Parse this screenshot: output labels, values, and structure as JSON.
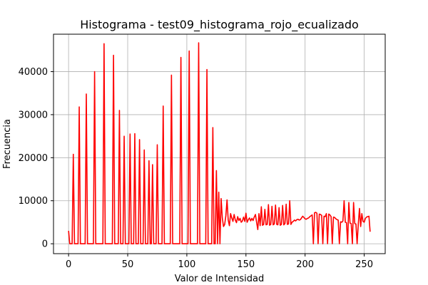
{
  "chart_data": {
    "type": "line",
    "title": "Histograma - test09_histograma_rojo_ecualizado",
    "xlabel": "Valor de Intensidad",
    "ylabel": "Frecuencia",
    "xlim": [
      -12.75,
      267.75
    ],
    "ylim": [
      -2300,
      48700
    ],
    "xticks": [
      0,
      50,
      100,
      150,
      200,
      250
    ],
    "yticks": [
      0,
      10000,
      20000,
      30000,
      40000
    ],
    "xtick_labels": [
      "0",
      "50",
      "100",
      "150",
      "200",
      "250"
    ],
    "ytick_labels": [
      "0",
      "10000",
      "20000",
      "30000",
      "40000"
    ],
    "grid": true,
    "series": [
      {
        "color": "#ff0000",
        "points": [
          [
            0,
            3000
          ],
          [
            1,
            0
          ],
          [
            3,
            0
          ],
          [
            4,
            20800
          ],
          [
            5,
            0
          ],
          [
            8,
            0
          ],
          [
            9,
            31800
          ],
          [
            10,
            0
          ],
          [
            14,
            0
          ],
          [
            15,
            34800
          ],
          [
            16,
            0
          ],
          [
            21,
            0
          ],
          [
            22,
            40000
          ],
          [
            23,
            0
          ],
          [
            29,
            0
          ],
          [
            30,
            46500
          ],
          [
            31,
            0
          ],
          [
            37,
            0
          ],
          [
            38,
            43800
          ],
          [
            39,
            0
          ],
          [
            42,
            0
          ],
          [
            43,
            31000
          ],
          [
            44,
            0
          ],
          [
            46,
            0
          ],
          [
            47,
            25000
          ],
          [
            48,
            0
          ],
          [
            51,
            0
          ],
          [
            52,
            25500
          ],
          [
            53,
            0
          ],
          [
            55,
            0
          ],
          [
            56,
            25600
          ],
          [
            57,
            0
          ],
          [
            59,
            0
          ],
          [
            60,
            24200
          ],
          [
            61,
            0
          ],
          [
            63,
            0
          ],
          [
            64,
            21800
          ],
          [
            65,
            0
          ],
          [
            67,
            0
          ],
          [
            68,
            19300
          ],
          [
            69,
            0
          ],
          [
            70,
            0
          ],
          [
            71,
            18400
          ],
          [
            72,
            0
          ],
          [
            74,
            0
          ],
          [
            75,
            23000
          ],
          [
            76,
            0
          ],
          [
            79,
            0
          ],
          [
            80,
            32000
          ],
          [
            81,
            0
          ],
          [
            86,
            0
          ],
          [
            87,
            39200
          ],
          [
            88,
            0
          ],
          [
            94,
            0
          ],
          [
            95,
            43300
          ],
          [
            96,
            0
          ],
          [
            101,
            0
          ],
          [
            102,
            44800
          ],
          [
            103,
            0
          ],
          [
            109,
            0
          ],
          [
            110,
            46700
          ],
          [
            111,
            0
          ],
          [
            116,
            0
          ],
          [
            117,
            40500
          ],
          [
            118,
            0
          ],
          [
            121,
            0
          ],
          [
            122,
            27000
          ],
          [
            123,
            0
          ],
          [
            124,
            0
          ],
          [
            125,
            17000
          ],
          [
            126,
            0
          ],
          [
            127,
            12000
          ],
          [
            128,
            0
          ],
          [
            129,
            10500
          ],
          [
            130,
            6000
          ],
          [
            131,
            4000
          ],
          [
            132,
            4500
          ],
          [
            133,
            6500
          ],
          [
            134,
            10200
          ],
          [
            135,
            5500
          ],
          [
            136,
            4200
          ],
          [
            137,
            7000
          ],
          [
            138,
            6000
          ],
          [
            139,
            5200
          ],
          [
            140,
            6800
          ],
          [
            141,
            5500
          ],
          [
            142,
            4900
          ],
          [
            143,
            6300
          ],
          [
            144,
            5400
          ],
          [
            145,
            5900
          ],
          [
            146,
            5000
          ],
          [
            147,
            5300
          ],
          [
            148,
            6200
          ],
          [
            149,
            5200
          ],
          [
            150,
            7100
          ],
          [
            151,
            5000
          ],
          [
            152,
            5600
          ],
          [
            153,
            6000
          ],
          [
            154,
            5300
          ],
          [
            155,
            5900
          ],
          [
            156,
            5400
          ],
          [
            157,
            6200
          ],
          [
            158,
            6800
          ],
          [
            159,
            5000
          ],
          [
            160,
            3300
          ],
          [
            161,
            7000
          ],
          [
            162,
            4200
          ],
          [
            163,
            8600
          ],
          [
            164,
            4300
          ],
          [
            165,
            4500
          ],
          [
            166,
            8000
          ],
          [
            167,
            4400
          ],
          [
            168,
            4500
          ],
          [
            169,
            9100
          ],
          [
            170,
            4300
          ],
          [
            171,
            4500
          ],
          [
            172,
            8700
          ],
          [
            173,
            4400
          ],
          [
            174,
            4600
          ],
          [
            175,
            9000
          ],
          [
            176,
            4500
          ],
          [
            177,
            4400
          ],
          [
            178,
            8400
          ],
          [
            179,
            4300
          ],
          [
            180,
            4500
          ],
          [
            181,
            8900
          ],
          [
            182,
            4400
          ],
          [
            183,
            4700
          ],
          [
            184,
            9200
          ],
          [
            185,
            4500
          ],
          [
            186,
            4600
          ],
          [
            187,
            10000
          ],
          [
            188,
            4500
          ],
          [
            189,
            5000
          ],
          [
            190,
            5200
          ],
          [
            191,
            5500
          ],
          [
            192,
            5300
          ],
          [
            193,
            5600
          ],
          [
            194,
            5700
          ],
          [
            195,
            5500
          ],
          [
            196,
            5600
          ],
          [
            197,
            6000
          ],
          [
            198,
            6400
          ],
          [
            199,
            6100
          ],
          [
            200,
            5800
          ],
          [
            201,
            5700
          ],
          [
            202,
            5900
          ],
          [
            203,
            6000
          ],
          [
            204,
            6300
          ],
          [
            205,
            6500
          ],
          [
            206,
            6700
          ],
          [
            207,
            0
          ],
          [
            208,
            7200
          ],
          [
            209,
            7300
          ],
          [
            210,
            7100
          ],
          [
            211,
            0
          ],
          [
            212,
            6900
          ],
          [
            213,
            6800
          ],
          [
            214,
            6600
          ],
          [
            215,
            0
          ],
          [
            216,
            6400
          ],
          [
            217,
            6300
          ],
          [
            218,
            7000
          ],
          [
            219,
            0
          ],
          [
            220,
            6900
          ],
          [
            221,
            6700
          ],
          [
            222,
            6300
          ],
          [
            223,
            0
          ],
          [
            224,
            6200
          ],
          [
            225,
            6100
          ],
          [
            226,
            5800
          ],
          [
            227,
            5600
          ],
          [
            228,
            5500
          ],
          [
            229,
            0
          ],
          [
            230,
            5100
          ],
          [
            231,
            5000
          ],
          [
            232,
            5300
          ],
          [
            233,
            10000
          ],
          [
            234,
            5000
          ],
          [
            235,
            4900
          ],
          [
            236,
            0
          ],
          [
            237,
            9600
          ],
          [
            238,
            4800
          ],
          [
            239,
            4700
          ],
          [
            240,
            0
          ],
          [
            241,
            9600
          ],
          [
            242,
            4700
          ],
          [
            243,
            4600
          ],
          [
            244,
            0
          ],
          [
            245,
            4600
          ],
          [
            246,
            8200
          ],
          [
            247,
            4000
          ],
          [
            248,
            7000
          ],
          [
            249,
            5200
          ],
          [
            250,
            5000
          ],
          [
            251,
            5900
          ],
          [
            252,
            6200
          ],
          [
            253,
            6300
          ],
          [
            254,
            6400
          ],
          [
            255,
            2800
          ]
        ]
      }
    ]
  }
}
